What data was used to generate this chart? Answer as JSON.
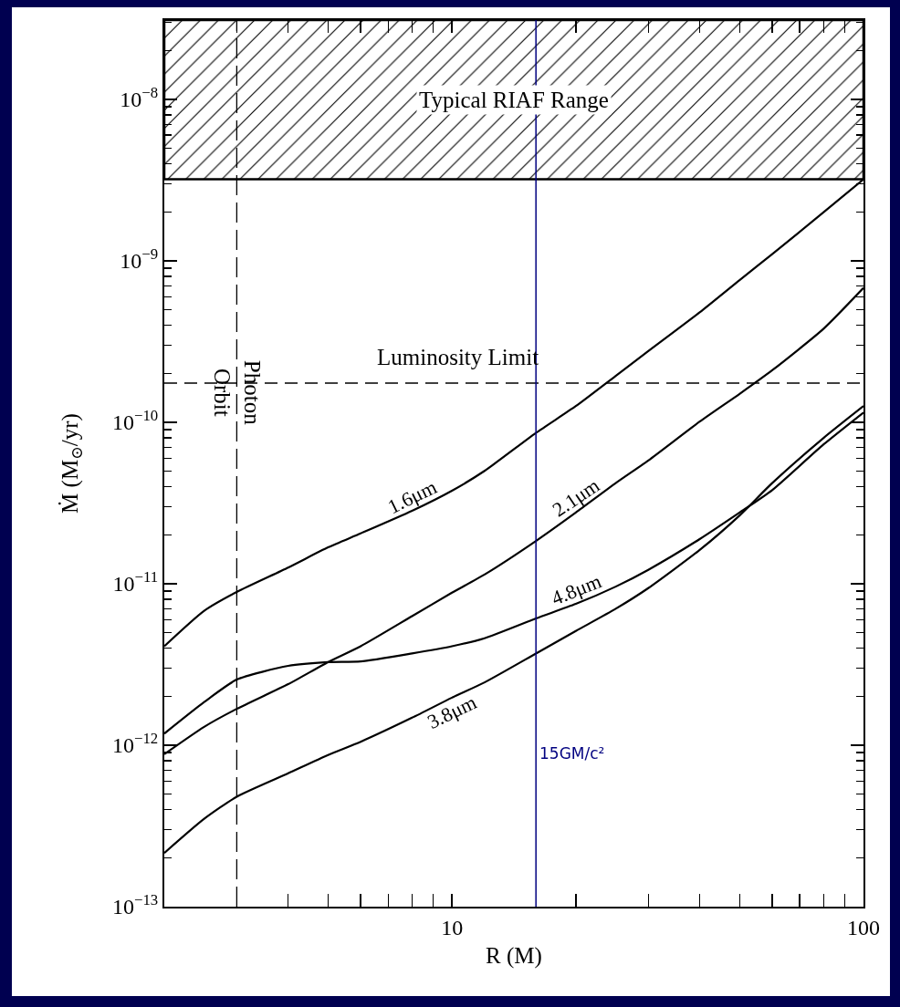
{
  "chart_data": {
    "type": "line",
    "xlabel": "R (M)",
    "ylabel": "Ṁ (M$_{⊙}$/yr)",
    "log": "xy",
    "grid": false,
    "legend": false,
    "marker": "none",
    "line_style": "solid",
    "xlim": [
      2,
      100
    ],
    "xticks": [
      {
        "value": 2,
        "label": null
      },
      {
        "value": 3,
        "label": null
      },
      {
        "value": 4,
        "label": null
      },
      {
        "value": 5,
        "label": null
      },
      {
        "value": 6,
        "label": null
      },
      {
        "value": 7,
        "label": null
      },
      {
        "value": 8,
        "label": null
      },
      {
        "value": 9,
        "label": null
      },
      10,
      {
        "value": 20,
        "label": null
      },
      {
        "value": 30,
        "label": null
      },
      {
        "value": 40,
        "label": null
      },
      {
        "value": 50,
        "label": null
      },
      {
        "value": 60,
        "label": null
      },
      {
        "value": 70,
        "label": null
      },
      {
        "value": 80,
        "label": null
      },
      {
        "value": 90,
        "label": null
      },
      100
    ],
    "ylim": [
      1e-13,
      3.1e-08
    ],
    "yticks": [
      {
        "value": 1e-13,
        "label": "10$^{−13}$"
      },
      {
        "value": 1e-12,
        "label": "10$^{−12}$"
      },
      {
        "value": 1e-11,
        "label": "10$^{−11}$"
      },
      {
        "value": 1e-10,
        "label": "10$^{−10}$"
      },
      {
        "value": 1e-09,
        "label": "10$^{−9}$"
      },
      {
        "value": 1e-08,
        "label": "10$^{−8}$"
      }
    ],
    "x": [
      2,
      2.5,
      3,
      4,
      5,
      6,
      8,
      10,
      12,
      16,
      20,
      25,
      30,
      40,
      50,
      60,
      80,
      100
    ],
    "series": [
      {
        "name": "1.6μm",
        "color": "#000000",
        "values": [
          4.1e-12,
          6.8e-12,
          8.9e-12,
          1.26e-11,
          1.68e-11,
          2.05e-11,
          2.83e-11,
          3.77e-11,
          5e-11,
          8.6e-11,
          1.26e-10,
          1.94e-10,
          2.76e-10,
          4.8e-10,
          7.6e-10,
          1.1e-09,
          2e-09,
          3.2e-09
        ]
      },
      {
        "name": "2.1μm",
        "color": "#000000",
        "values": [
          8.8e-13,
          1.3e-12,
          1.68e-12,
          2.39e-12,
          3.27e-12,
          4.1e-12,
          6.3e-12,
          8.8e-12,
          1.14e-11,
          1.84e-11,
          2.76e-11,
          4.2e-11,
          5.8e-11,
          1.01e-10,
          1.5e-10,
          2.1e-10,
          3.8e-10,
          6.8e-10
        ]
      },
      {
        "name": "4.8μm",
        "color": "#000000",
        "values": [
          1.18e-12,
          1.85e-12,
          2.55e-12,
          3.1e-12,
          3.27e-12,
          3.3e-12,
          3.7e-12,
          4.1e-12,
          4.6e-12,
          6.1e-12,
          7.5e-12,
          9.6e-12,
          1.22e-11,
          1.89e-11,
          2.76e-11,
          3.8e-11,
          7.3e-11,
          1.15e-10
        ]
      },
      {
        "name": "3.8μm",
        "color": "#000000",
        "values": [
          2.15e-13,
          3.5e-13,
          4.8e-13,
          6.7e-13,
          8.7e-13,
          1.05e-12,
          1.48e-12,
          1.97e-12,
          2.45e-12,
          3.7e-12,
          5.1e-12,
          7e-12,
          9.4e-12,
          1.62e-11,
          2.65e-11,
          4.2e-11,
          8e-11,
          1.26e-10
        ]
      }
    ],
    "ref_lines": [
      {
        "axis": "y",
        "value": 1.75e-10,
        "label": "Luminosity Limit",
        "line_style": "dashed",
        "color": "#000000"
      },
      {
        "axis": "x",
        "value": 3,
        "label": "Photon Orbit",
        "line_style": "dashed",
        "color": "#000000"
      },
      {
        "axis": "x",
        "value": 16,
        "label": "15GM/c²",
        "line_style": "solid",
        "color": "#000080"
      }
    ],
    "bands": [
      {
        "axis": "y",
        "from": 3.2e-09,
        "to": 3.1e-08,
        "label": "Typical RIAF Range",
        "color": "#000000"
      }
    ]
  }
}
